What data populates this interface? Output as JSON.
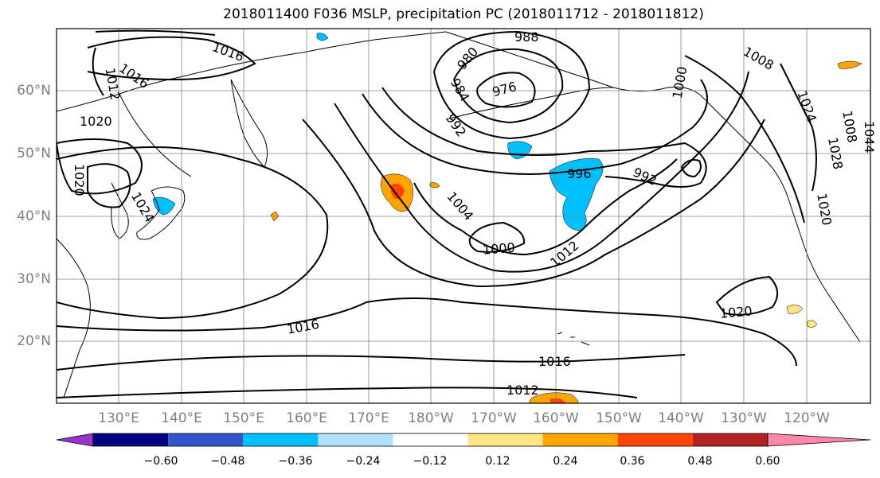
{
  "title": "2018011400 F036 MSLP, precipitation PC (2018011712 - 2018011812)",
  "map": {
    "lat_labels": [
      "60°N",
      "50°N",
      "40°N",
      "30°N",
      "20°N"
    ],
    "lon_labels": [
      "130°E",
      "140°E",
      "150°E",
      "160°E",
      "170°E",
      "180°W",
      "170°W",
      "160°W",
      "150°W",
      "140°W",
      "130°W",
      "120°W"
    ],
    "contour_labels": [
      "1016",
      "1012",
      "1016",
      "1020",
      "1020",
      "1024",
      "988",
      "980",
      "984",
      "976",
      "992",
      "1004",
      "1000",
      "1012",
      "996",
      "992",
      "1000",
      "1008",
      "1024",
      "1008",
      "1044",
      "1028",
      "1020",
      "1016",
      "1020",
      "1016",
      "1012"
    ],
    "land_color": "#ffffff",
    "grid": true
  },
  "colorbar": {
    "colors": [
      "#9933cc",
      "#000080",
      "#3355cc",
      "#00bfff",
      "#b0e0ff",
      "#ffffff",
      "#ffe680",
      "#ffa500",
      "#ff4500",
      "#b22222",
      "#ff88aa"
    ],
    "tick_labels": [
      "−0.60",
      "−0.48",
      "−0.36",
      "−0.24",
      "−0.12",
      "0.12",
      "0.24",
      "0.36",
      "0.48",
      "0.60"
    ]
  }
}
